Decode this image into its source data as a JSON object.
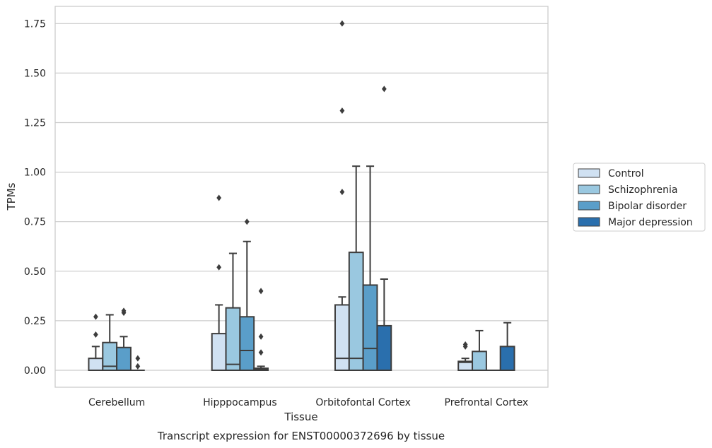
{
  "chart_data": {
    "type": "box",
    "title": "",
    "caption": "Transcript expression for ENST00000372696 by tissue",
    "xlabel": "Tissue",
    "ylabel": "TPMs",
    "ylim": [
      -0.08,
      1.84
    ],
    "yticks": [
      0.0,
      0.25,
      0.5,
      0.75,
      1.0,
      1.25,
      1.5,
      1.75
    ],
    "ytick_labels": [
      "0.00",
      "0.25",
      "0.50",
      "0.75",
      "1.00",
      "1.25",
      "1.50",
      "1.75"
    ],
    "grid": "horizontal",
    "legend_position": "right",
    "categories": [
      "Cerebellum",
      "Hipppocampus",
      "Orbitofontal Cortex",
      "Prefrontal Cortex"
    ],
    "series": [
      {
        "name": "Control",
        "color": "#d0e1f2",
        "boxes": [
          {
            "whislo": 0.0,
            "q1": 0.0,
            "med": 0.0,
            "q3": 0.06,
            "whishi": 0.12,
            "fliers": [
              0.18,
              0.27
            ]
          },
          {
            "whislo": 0.0,
            "q1": 0.0,
            "med": 0.0,
            "q3": 0.185,
            "whishi": 0.33,
            "fliers": [
              0.52,
              0.87
            ]
          },
          {
            "whislo": 0.0,
            "q1": 0.0,
            "med": 0.06,
            "q3": 0.33,
            "whishi": 0.37,
            "fliers": [
              0.9,
              1.31,
              1.75
            ]
          },
          {
            "whislo": 0.0,
            "q1": 0.0,
            "med": 0.04,
            "q3": 0.045,
            "whishi": 0.06,
            "fliers": [
              0.12,
              0.13
            ]
          }
        ]
      },
      {
        "name": "Schizophrenia",
        "color": "#9ac8e0",
        "boxes": [
          {
            "whislo": 0.0,
            "q1": 0.0,
            "med": 0.02,
            "q3": 0.14,
            "whishi": 0.28,
            "fliers": []
          },
          {
            "whislo": 0.0,
            "q1": 0.0,
            "med": 0.03,
            "q3": 0.315,
            "whishi": 0.59,
            "fliers": []
          },
          {
            "whislo": 0.0,
            "q1": 0.0,
            "med": 0.06,
            "q3": 0.595,
            "whishi": 1.03,
            "fliers": []
          },
          {
            "whislo": 0.0,
            "q1": 0.0,
            "med": 0.0,
            "q3": 0.095,
            "whishi": 0.2,
            "fliers": []
          }
        ]
      },
      {
        "name": "Bipolar disorder",
        "color": "#5a9ec9",
        "boxes": [
          {
            "whislo": 0.0,
            "q1": 0.0,
            "med": 0.0,
            "q3": 0.115,
            "whishi": 0.17,
            "fliers": [
              0.29,
              0.3
            ]
          },
          {
            "whislo": 0.0,
            "q1": 0.0,
            "med": 0.1,
            "q3": 0.27,
            "whishi": 0.65,
            "fliers": [
              0.75
            ]
          },
          {
            "whislo": 0.0,
            "q1": 0.0,
            "med": 0.11,
            "q3": 0.43,
            "whishi": 1.03,
            "fliers": []
          },
          {
            "whislo": 0.0,
            "q1": 0.0,
            "med": 0.0,
            "q3": 0.0,
            "whishi": 0.0,
            "fliers": []
          }
        ]
      },
      {
        "name": "Major depression",
        "color": "#2a6fad",
        "boxes": [
          {
            "whislo": 0.0,
            "q1": 0.0,
            "med": 0.0,
            "q3": 0.0,
            "whishi": 0.0,
            "fliers": [
              0.02,
              0.06
            ]
          },
          {
            "whislo": 0.0,
            "q1": 0.0,
            "med": 0.005,
            "q3": 0.01,
            "whishi": 0.02,
            "fliers": [
              0.09,
              0.17,
              0.4
            ]
          },
          {
            "whislo": 0.0,
            "q1": 0.0,
            "med": 0.0,
            "q3": 0.225,
            "whishi": 0.46,
            "fliers": [
              1.42
            ]
          },
          {
            "whislo": 0.0,
            "q1": 0.0,
            "med": 0.0,
            "q3": 0.12,
            "whishi": 0.24,
            "fliers": []
          }
        ]
      }
    ]
  }
}
